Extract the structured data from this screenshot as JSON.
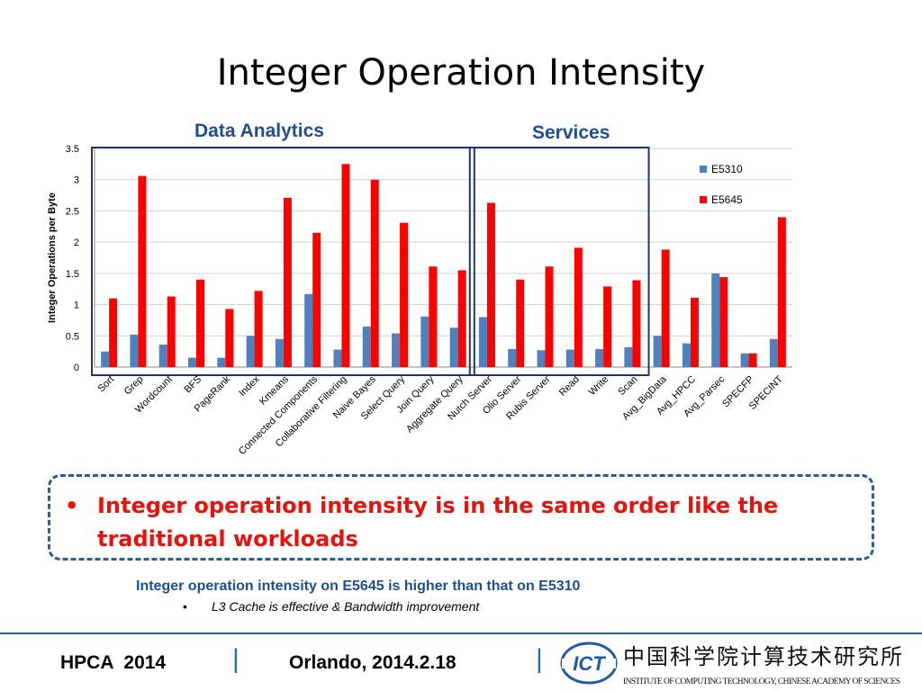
{
  "slide": {
    "title": "Integer Operation Intensity",
    "bullet": "Integer operation intensity is in the same order like the traditional workloads",
    "note": "Integer operation intensity on E5645 is higher than that on E5310",
    "subnote": "L3 Cache is effective & Bandwidth improvement",
    "footer_left": "HPCA  2014",
    "footer_separator": "|",
    "footer_center": "Orlando, 2014.2.18",
    "logo_text": "ICT",
    "logo_chinese": "中国科学院计算技术研究所",
    "logo_english": "INSTITUTE OF  COMPUTING TECHNOLOGY, CHINESE ACADEMY OF SCIENCES"
  },
  "colors": {
    "E5310": "#4f81bd",
    "E5645": "#ff0000",
    "accent": "#1f4e8c",
    "group_box": "#1f3864"
  },
  "groups": [
    {
      "label": "Data Analytics",
      "first": 0,
      "last": 12
    },
    {
      "label": "Services",
      "first": 13,
      "last": 18
    }
  ],
  "chart_data": {
    "type": "bar",
    "ylabel": "Integer Operations per Byte",
    "ylim": [
      0,
      3.5
    ],
    "yticks": [
      "0",
      "0.5",
      "1",
      "1.5",
      "2",
      "2.5",
      "3",
      "3.5"
    ],
    "grid": true,
    "legend": "top-right",
    "categories": [
      "Sort",
      "Grep",
      "Wordcount",
      "BFS",
      "PageRank",
      "Index",
      "Kmeans",
      "Connected Components",
      "Collaborative Filtering",
      "Naive Bayes",
      "Select Query",
      "Join Query",
      "Aggregate Query",
      "Nutch Server",
      "Olio Server",
      "Rubis Server",
      "Read",
      "Write",
      "Scan",
      "Avg_BigData",
      "Avg_HPCC",
      "Avg_Parsec",
      "SPECFP",
      "SPECINT"
    ],
    "series": [
      {
        "name": "E5310",
        "values": [
          0.25,
          0.52,
          0.36,
          0.15,
          0.15,
          0.5,
          0.45,
          1.17,
          0.28,
          0.65,
          0.54,
          0.81,
          0.63,
          0.8,
          0.29,
          0.27,
          0.28,
          0.29,
          0.32,
          0.5,
          0.38,
          1.5,
          0.22,
          0.45
        ]
      },
      {
        "name": "E5645",
        "values": [
          1.1,
          3.06,
          1.13,
          1.4,
          0.93,
          1.22,
          2.71,
          2.15,
          3.25,
          3.0,
          2.31,
          1.61,
          1.55,
          2.63,
          1.4,
          1.61,
          1.91,
          1.29,
          1.39,
          1.88,
          1.11,
          1.44,
          0.22,
          2.4
        ]
      }
    ]
  }
}
